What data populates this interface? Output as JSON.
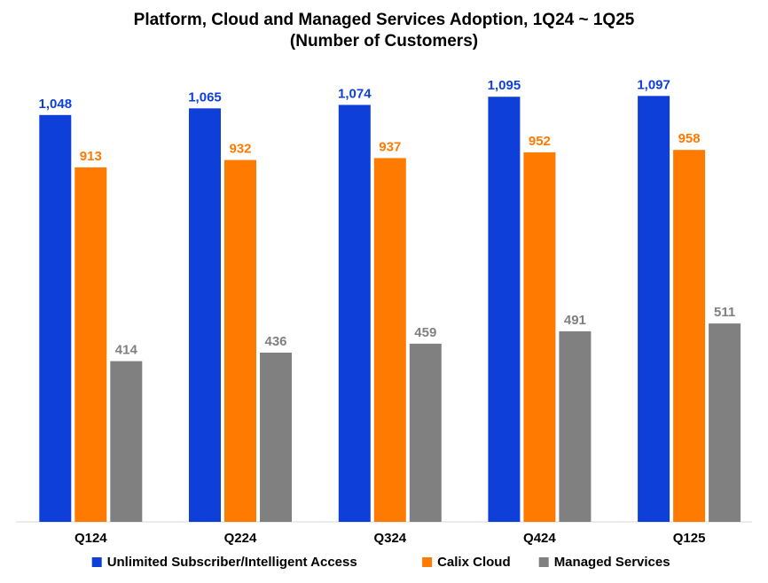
{
  "chart_data": {
    "type": "bar",
    "title": "Platform, Cloud and Managed Services Adoption, 1Q24 ~ 1Q25",
    "subtitle": "(Number of Customers)",
    "xlabel": "",
    "ylabel": "",
    "ylim": [
      0,
      1100
    ],
    "grid": false,
    "legend_position": "bottom",
    "categories": [
      "Q124",
      "Q224",
      "Q324",
      "Q424",
      "Q125"
    ],
    "series": [
      {
        "name": "Unlimited Subscriber/Intelligent Access",
        "color": "#0F3FD9",
        "values": [
          1048,
          1065,
          1074,
          1095,
          1097
        ],
        "labels": [
          "1,048",
          "1,065",
          "1,074",
          "1,095",
          "1,097"
        ]
      },
      {
        "name": "Calix Cloud",
        "color": "#FF7A00",
        "values": [
          913,
          932,
          937,
          952,
          958
        ],
        "labels": [
          "913",
          "932",
          "937",
          "952",
          "958"
        ]
      },
      {
        "name": "Managed Services",
        "color": "#808080",
        "values": [
          414,
          436,
          459,
          491,
          511
        ],
        "labels": [
          "414",
          "436",
          "459",
          "491",
          "511"
        ]
      }
    ]
  }
}
